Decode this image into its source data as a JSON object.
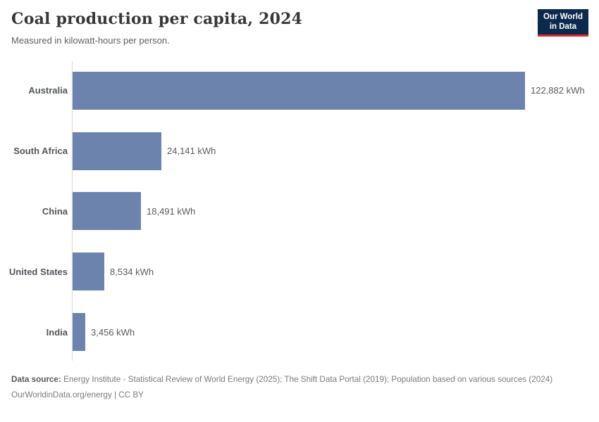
{
  "header": {
    "title": "Coal production per capita, 2024",
    "subtitle": "Measured in kilowatt-hours per person.",
    "logo": {
      "line1": "Our World",
      "line2": "in Data"
    }
  },
  "chart_data": {
    "type": "bar",
    "orientation": "horizontal",
    "categories": [
      "Australia",
      "South Africa",
      "China",
      "United States",
      "India"
    ],
    "values": [
      122882,
      24141,
      18491,
      8534,
      3456
    ],
    "value_labels": [
      "122,882 kWh",
      "24,141 kWh",
      "18,491 kWh",
      "8,534 kWh",
      "3,456 kWh"
    ],
    "unit": "kWh",
    "title": "Coal production per capita, 2024",
    "xlabel": "",
    "ylabel": "",
    "xlim": [
      0,
      122882
    ],
    "grid": false,
    "legend_position": "none",
    "bar_color": "#6c84ad"
  },
  "footer": {
    "source_label": "Data source:",
    "source_text": "Energy Institute - Statistical Review of World Energy (2025); The Shift Data Portal (2019); Population based on various sources (2024)",
    "license_text": "OurWorldinData.org/energy | CC BY"
  },
  "colors": {
    "bar": "#6c84ad",
    "axis_line": "#dcdcdc",
    "logo_background": "#0b2a4e",
    "logo_accent": "#dc2a2a",
    "title_text": "#373737",
    "body_text": "#5b5b5b",
    "footer_text": "#7b7b7b"
  }
}
